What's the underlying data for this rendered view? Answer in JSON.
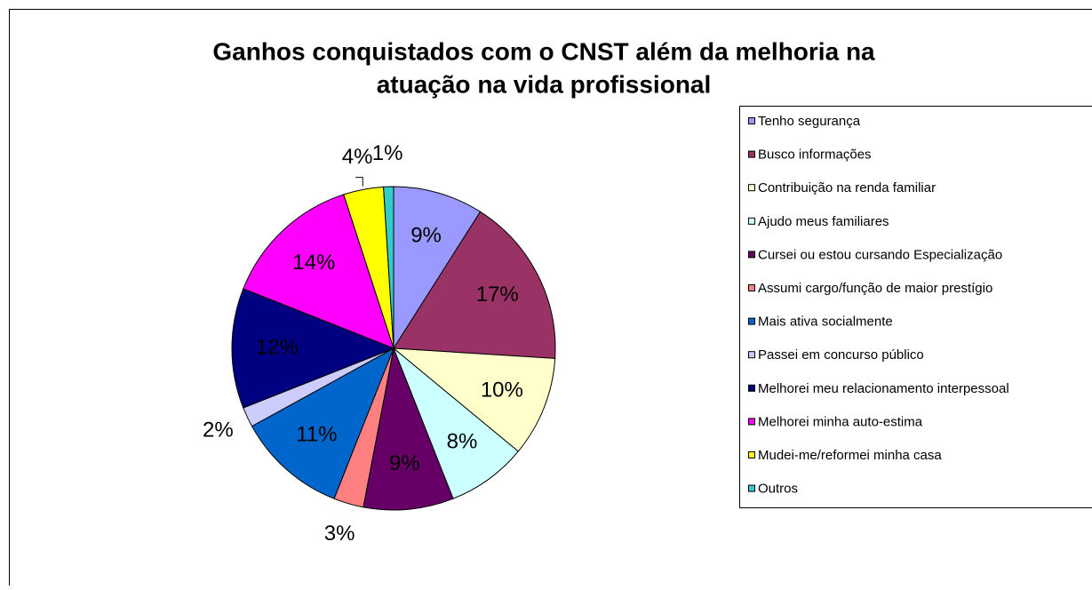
{
  "chart_data": {
    "type": "pie",
    "title": [
      "Ganhos conquistados com o CNST além da melhoria na",
      "atuação na vida profissional"
    ],
    "categories": [
      "Tenho segurança",
      "Busco informações",
      "Contribuição na renda familiar",
      "Ajudo meus familiares",
      "Cursei ou estou cursando Especialização",
      "Assumi cargo/função de maior prestígio",
      "Mais ativa socialmente",
      "Passei em concurso público",
      "Melhorei meu relacionamento interpessoal",
      "Melhorei minha auto-estima",
      "Mudei-me/reformei minha casa",
      "Outros"
    ],
    "values": [
      9,
      17,
      10,
      8,
      9,
      3,
      11,
      2,
      12,
      14,
      4,
      1
    ],
    "value_labels": [
      "9%",
      "17%",
      "10%",
      "8%",
      "9%",
      "3%",
      "11%",
      "2%",
      "12%",
      "14%",
      "4%",
      "1%"
    ],
    "colors": [
      "#9999ff",
      "#993366",
      "#ffffcc",
      "#ccffff",
      "#660066",
      "#ff8080",
      "#0066cc",
      "#ccccff",
      "#000080",
      "#ff00ff",
      "#ffff00",
      "#33cccc"
    ],
    "legend": "right"
  }
}
